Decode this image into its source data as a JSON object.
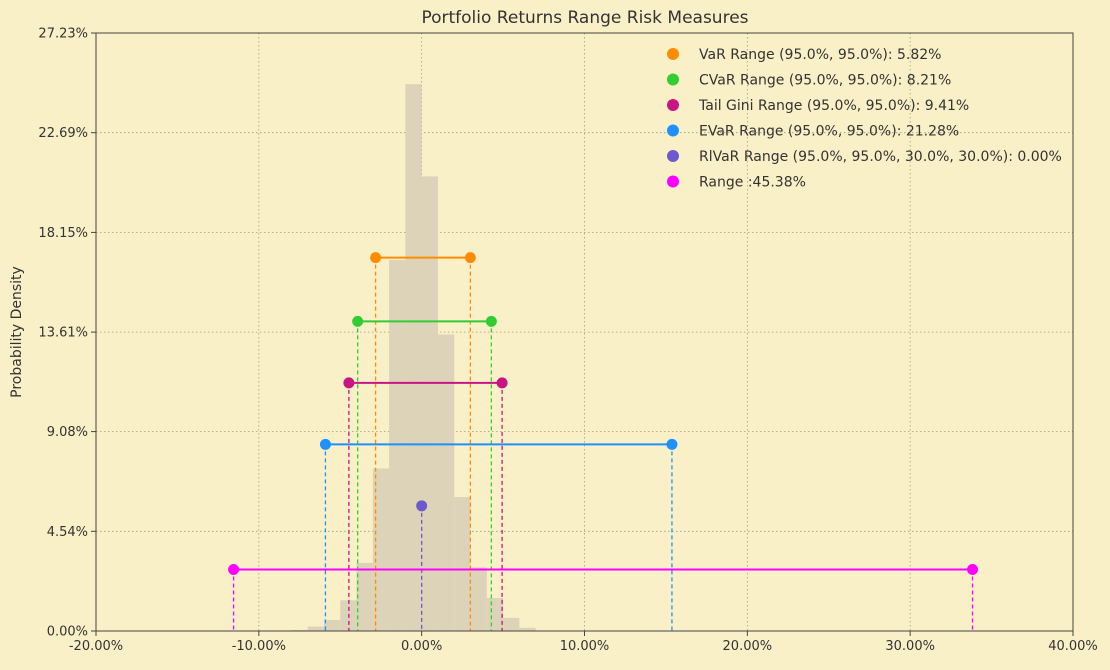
{
  "chart_data": {
    "type": "histogram_with_ranges",
    "title": "Portfolio Returns Range Risk Measures",
    "ylabel": "Probability Density",
    "xlabel": "",
    "xlim": [
      -20,
      40
    ],
    "ylim": [
      0,
      27.23
    ],
    "x_ticks": [
      -20,
      -10,
      0,
      10,
      20,
      30,
      40
    ],
    "x_tick_labels": [
      "-20.00%",
      "-10.00%",
      "0.00%",
      "10.00%",
      "20.00%",
      "30.00%",
      "40.00%"
    ],
    "y_ticks": [
      0,
      4.54,
      9.08,
      13.61,
      18.15,
      22.69,
      27.23
    ],
    "y_tick_labels": [
      "0.00%",
      "4.54%",
      "9.08%",
      "13.61%",
      "18.15%",
      "22.69%",
      "27.23%"
    ],
    "grid": true,
    "histogram": {
      "color": "#dcd3b8",
      "bins": [
        {
          "x0": -8.0,
          "x1": -7.0,
          "density": 0.05
        },
        {
          "x0": -7.0,
          "x1": -6.0,
          "density": 0.2
        },
        {
          "x0": -6.0,
          "x1": -5.0,
          "density": 0.5
        },
        {
          "x0": -5.0,
          "x1": -4.0,
          "density": 1.4
        },
        {
          "x0": -4.0,
          "x1": -3.0,
          "density": 3.1
        },
        {
          "x0": -3.0,
          "x1": -2.0,
          "density": 7.4
        },
        {
          "x0": -2.0,
          "x1": -1.0,
          "density": 16.9
        },
        {
          "x0": -1.0,
          "x1": 0.0,
          "density": 24.9
        },
        {
          "x0": 0.0,
          "x1": 1.0,
          "density": 20.7
        },
        {
          "x0": 1.0,
          "x1": 2.0,
          "density": 13.5
        },
        {
          "x0": 2.0,
          "x1": 3.0,
          "density": 6.1
        },
        {
          "x0": 3.0,
          "x1": 4.0,
          "density": 2.9
        },
        {
          "x0": 4.0,
          "x1": 5.0,
          "density": 1.5
        },
        {
          "x0": 5.0,
          "x1": 6.0,
          "density": 0.6
        },
        {
          "x0": 6.0,
          "x1": 7.0,
          "density": 0.15
        }
      ]
    },
    "series": [
      {
        "name": "VaR Range (95.0%, 95.0%): 5.82%",
        "color": "#ff8c00",
        "x_low": -2.83,
        "x_high": 2.99,
        "y": 17.0
      },
      {
        "name": "CVaR Range (95.0%, 95.0%): 8.21%",
        "color": "#32cd32",
        "x_low": -3.93,
        "x_high": 4.28,
        "y": 14.1
      },
      {
        "name": "Tail Gini Range (95.0%, 95.0%): 9.41%",
        "color": "#c71585",
        "x_low": -4.47,
        "x_high": 4.94,
        "y": 11.3
      },
      {
        "name": "EVaR Range (95.0%, 95.0%): 21.28%",
        "color": "#1e90ff",
        "x_low": -5.91,
        "x_high": 15.37,
        "y": 8.5
      },
      {
        "name": "RlVaR Range (95.0%, 95.0%, 30.0%, 30.0%): 0.00%",
        "color": "#6a5acd",
        "x_low": 0.0,
        "x_high": 0.0,
        "y": 5.7
      },
      {
        "name": "Range :45.38%",
        "color": "#ff00ff",
        "x_low": -11.55,
        "x_high": 33.83,
        "y": 2.8
      }
    ]
  },
  "colors": {
    "background": "#faf0c8",
    "axis": "#444444",
    "grid": "#a09a80"
  }
}
